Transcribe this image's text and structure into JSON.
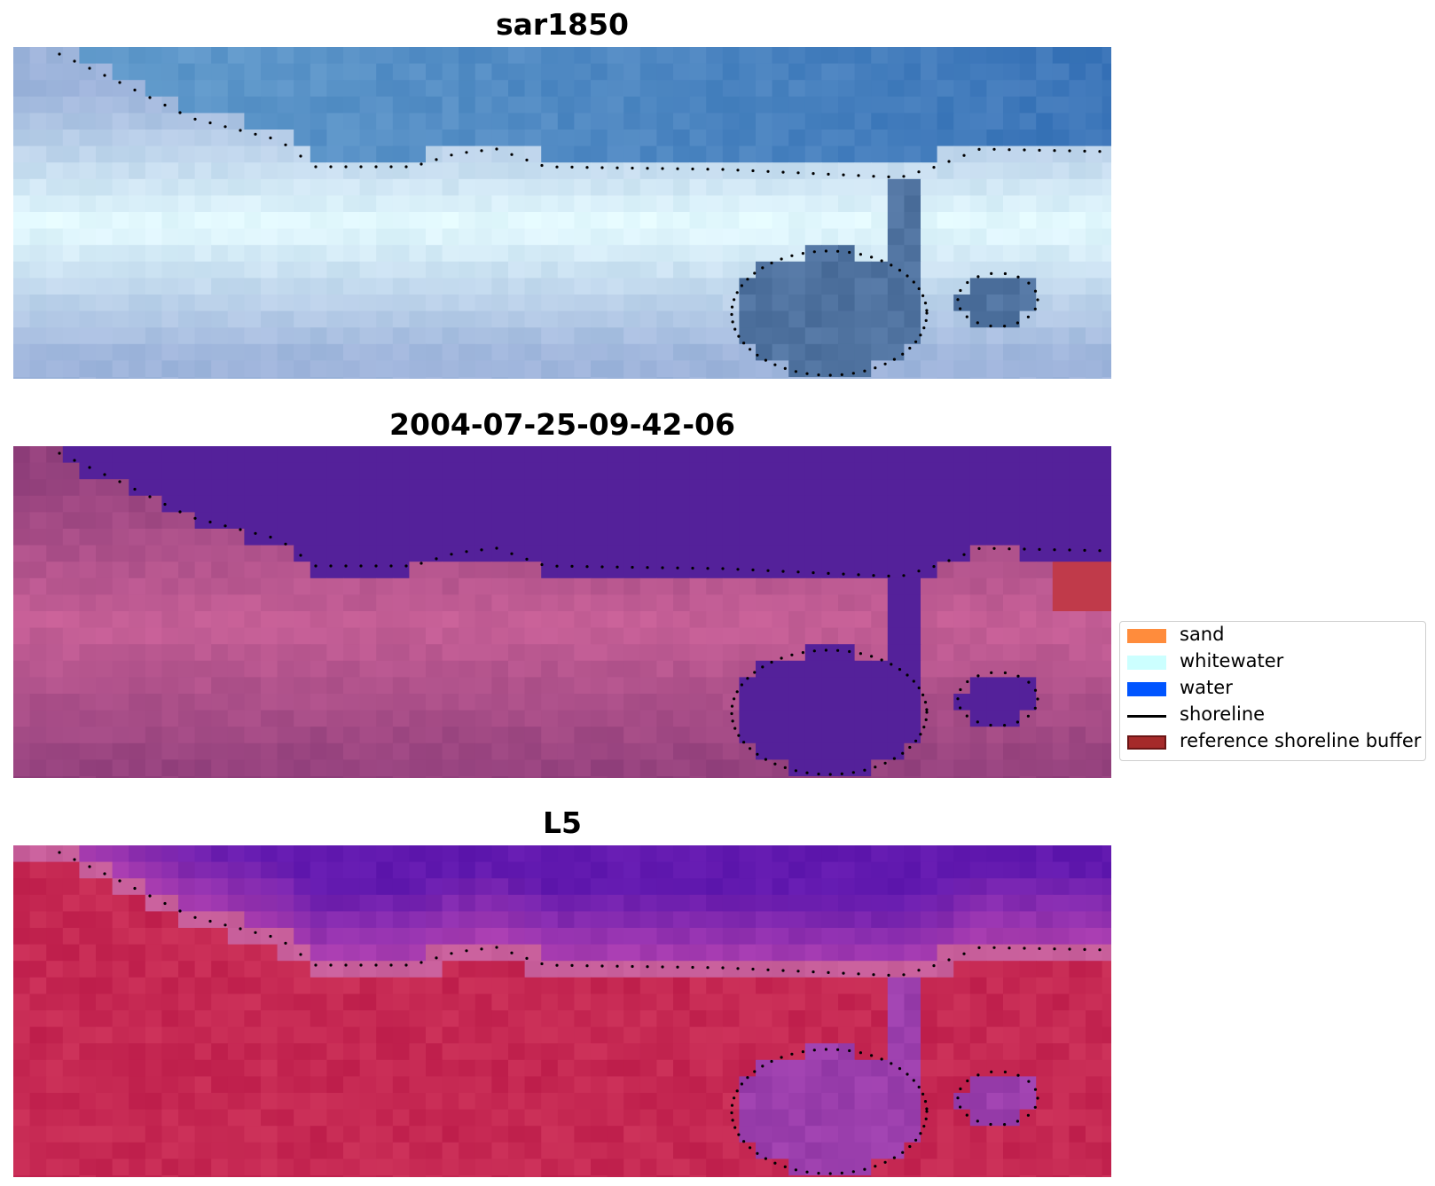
{
  "panels": [
    {
      "title": "sar1850",
      "style": "sar"
    },
    {
      "title": "2004-07-25-09-42-06",
      "style": "class"
    },
    {
      "title": "L5",
      "style": "index"
    }
  ],
  "legend": {
    "items": [
      {
        "label": "sand",
        "kind": "patch",
        "color": "#ff8c3c"
      },
      {
        "label": "whitewater",
        "kind": "patch",
        "color": "#ccffff"
      },
      {
        "label": "water",
        "kind": "patch",
        "color": "#0055ff"
      },
      {
        "label": "shoreline",
        "kind": "line",
        "color": "#000000"
      },
      {
        "label": "reference shoreline buffer",
        "kind": "patch",
        "color": "#a52a2a"
      }
    ]
  },
  "colors": {
    "shoreline_dots": "#000000",
    "class_water": "#54219a",
    "class_buffer": "#c03a4a"
  }
}
